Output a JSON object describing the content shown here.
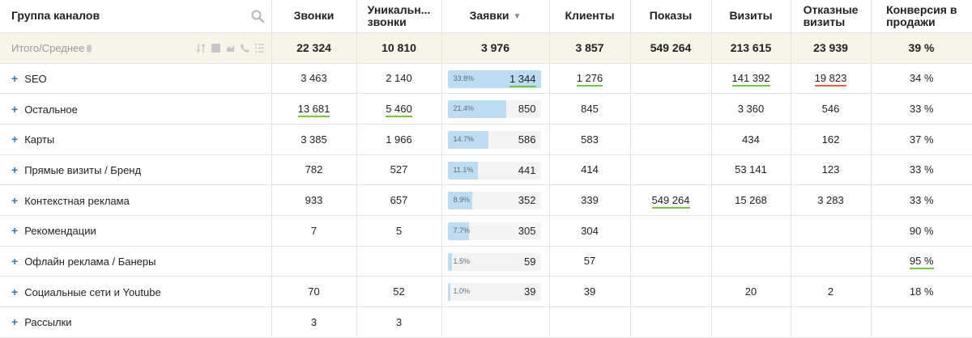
{
  "headers": {
    "group": "Группа каналов",
    "calls": "Звонки",
    "unique_line1": "Уникальн...",
    "unique_line2": "звонки",
    "leads": "Заявки",
    "clients": "Клиенты",
    "impressions": "Показы",
    "visits": "Визиты",
    "bounce_line1": "Отказные",
    "bounce_line2": "визиты",
    "conv_line1": "Конверсия в",
    "conv_line2": "продажи",
    "sort_indicator": "▼"
  },
  "total": {
    "label": "Итого/Среднее",
    "calls": "22 324",
    "unique": "10 810",
    "leads": "3 976",
    "clients": "3 857",
    "impressions": "549 264",
    "visits": "213 615",
    "bounce": "23 939",
    "conv": "39 %"
  },
  "rows": [
    {
      "name": "SEO",
      "calls": "3 463",
      "unique": "2 140",
      "lead_pct": "33.8%",
      "lead_fraction": 0.338,
      "leads": "1 344",
      "clients": "1 276",
      "impressions": "",
      "visits": "141 392",
      "bounce": "19 823",
      "conv": "34 %"
    },
    {
      "name": "Остальное",
      "calls": "13 681",
      "unique": "5 460",
      "lead_pct": "21.4%",
      "lead_fraction": 0.214,
      "leads": "850",
      "clients": "845",
      "impressions": "",
      "visits": "3 360",
      "bounce": "546",
      "conv": "33 %"
    },
    {
      "name": "Карты",
      "calls": "3 385",
      "unique": "1 966",
      "lead_pct": "14.7%",
      "lead_fraction": 0.147,
      "leads": "586",
      "clients": "583",
      "impressions": "",
      "visits": "434",
      "bounce": "162",
      "conv": "37 %"
    },
    {
      "name": "Прямые визиты / Бренд",
      "calls": "782",
      "unique": "527",
      "lead_pct": "11.1%",
      "lead_fraction": 0.111,
      "leads": "441",
      "clients": "414",
      "impressions": "",
      "visits": "53 141",
      "bounce": "123",
      "conv": "33 %"
    },
    {
      "name": "Контекстная реклама",
      "calls": "933",
      "unique": "657",
      "lead_pct": "8.9%",
      "lead_fraction": 0.089,
      "leads": "352",
      "clients": "339",
      "impressions": "549 264",
      "visits": "15 268",
      "bounce": "3 283",
      "conv": "33 %"
    },
    {
      "name": "Рекомендации",
      "calls": "7",
      "unique": "5",
      "lead_pct": "7.7%",
      "lead_fraction": 0.077,
      "leads": "305",
      "clients": "304",
      "impressions": "",
      "visits": "",
      "bounce": "",
      "conv": "90 %"
    },
    {
      "name": "Офлайн реклама / Банеры",
      "calls": "",
      "unique": "",
      "lead_pct": "1.5%",
      "lead_fraction": 0.015,
      "leads": "59",
      "clients": "57",
      "impressions": "",
      "visits": "",
      "bounce": "",
      "conv": "95 %"
    },
    {
      "name": "Социальные сети и Youtube",
      "calls": "70",
      "unique": "52",
      "lead_pct": "1.0%",
      "lead_fraction": 0.01,
      "leads": "39",
      "clients": "39",
      "impressions": "",
      "visits": "20",
      "bounce": "2",
      "conv": "18 %"
    },
    {
      "name": "Рассылки",
      "calls": "3",
      "unique": "3",
      "lead_pct": "",
      "lead_fraction": 0,
      "leads": "",
      "clients": "",
      "impressions": "",
      "visits": "",
      "bounce": "",
      "conv": ""
    }
  ],
  "colors": {
    "total_row_bg": "#f7f5e7",
    "bar_fill": "#bcdcf2",
    "underline_green": "#7cc242",
    "underline_red": "#e8604c",
    "plus_blue": "#3a76b5"
  },
  "icons": {
    "search": "search-icon",
    "total_tools": [
      "sort-icon",
      "grid-icon",
      "chart-icon",
      "phone-icon",
      "list-icon"
    ]
  }
}
